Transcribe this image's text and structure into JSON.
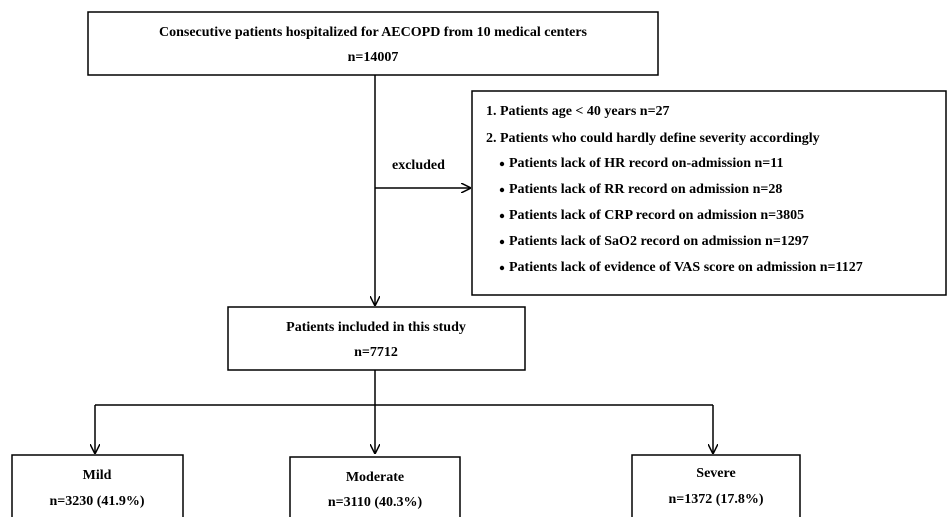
{
  "nodes": [
    {
      "label": "Consecutive patients hospitalized for AECOPD from 10 medical centers",
      "count": "n=14007"
    },
    {
      "label": "Patients included in this study",
      "count": "n=7712"
    },
    {
      "label": "Mild",
      "count": "n=3230 (41.9%)"
    },
    {
      "label": "Moderate",
      "count": "n=3110 (40.3%)"
    },
    {
      "label": "Severe",
      "count": "n=1372 (17.8%)"
    }
  ],
  "edge_label": "excluded",
  "exclusions": {
    "items": [
      "1.  Patients age < 40 years n=27",
      "2.  Patients who could hardly define severity accordingly"
    ],
    "sub_items": [
      "Patients lack of HR record on-admission n=11",
      "Patients lack of RR record on admission n=28",
      "Patients lack of CRP record on admission n=3805",
      "Patients lack of SaO2 record on admission n=1297",
      "Patients lack of evidence of VAS score on admission n=1127"
    ]
  }
}
